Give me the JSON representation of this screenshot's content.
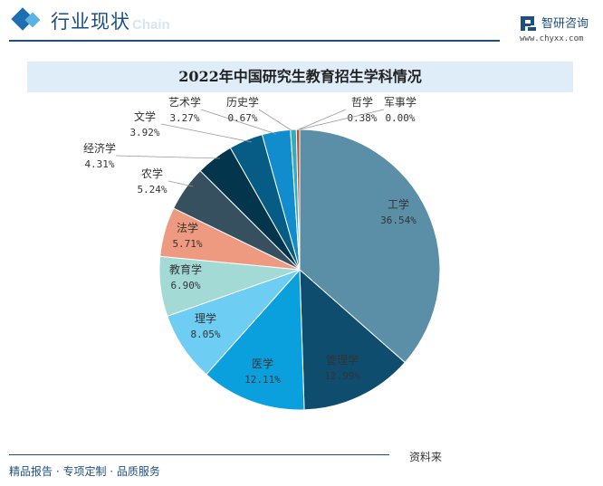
{
  "header": {
    "section_title": "行业现状",
    "ghost_text": "Chain",
    "logo_name": "智研咨询",
    "logo_url": "www.chyxx.com",
    "logo_color": "#1d4f7f"
  },
  "footer": {
    "tagline": "精品报告 · 专项定制 · 品质服务",
    "source": "资料来"
  },
  "chart_data": {
    "type": "pie",
    "title": "2022年中国研究生教育招生学科情况",
    "unit": "%",
    "start": "12 o'clock",
    "direction": "clockwise",
    "slices": [
      {
        "name": "工学",
        "value": 36.54,
        "label": "36.54%",
        "color": "#5b8fa8"
      },
      {
        "name": "管理学",
        "value": 12.99,
        "label": "12.99%",
        "color": "#0f4d6e"
      },
      {
        "name": "医学",
        "value": 12.11,
        "label": "12.11%",
        "color": "#0aa0dd"
      },
      {
        "name": "理学",
        "value": 8.05,
        "label": "8.05%",
        "color": "#6dcdf3"
      },
      {
        "name": "教育学",
        "value": 6.9,
        "label": "6.90%",
        "color": "#a3dad6"
      },
      {
        "name": "法学",
        "value": 5.71,
        "label": "5.71%",
        "color": "#ee9a80"
      },
      {
        "name": "农学",
        "value": 5.24,
        "label": "5.24%",
        "color": "#36505f"
      },
      {
        "name": "经济学",
        "value": 4.31,
        "label": "4.31%",
        "color": "#03364c"
      },
      {
        "name": "文学",
        "value": 3.92,
        "label": "3.92%",
        "color": "#065c85"
      },
      {
        "name": "艺术学",
        "value": 3.27,
        "label": "3.27%",
        "color": "#118ccc"
      },
      {
        "name": "历史学",
        "value": 0.67,
        "label": "0.67%",
        "color": "#33abc0"
      },
      {
        "name": "哲学",
        "value": 0.38,
        "label": "0.38%",
        "color": "#c0502b"
      },
      {
        "name": "军事学",
        "value": 0.0,
        "label": "0.00%",
        "color": "#9c2a16"
      }
    ]
  }
}
